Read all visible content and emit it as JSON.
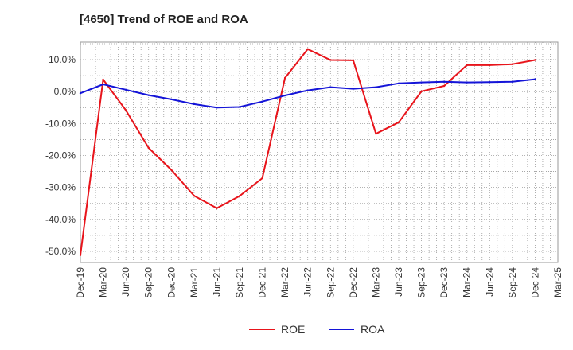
{
  "chart_data": {
    "type": "line",
    "title": "[4650]  Trend of ROE and ROA",
    "xlabel": "",
    "ylabel": "",
    "x_ticks": [
      "Dec-19",
      "Mar-20",
      "Jun-20",
      "Sep-20",
      "Dec-20",
      "Mar-21",
      "Jun-21",
      "Sep-21",
      "Dec-21",
      "Mar-22",
      "Jun-22",
      "Sep-22",
      "Dec-22",
      "Mar-23",
      "Jun-23",
      "Sep-23",
      "Dec-23",
      "Mar-24",
      "Jun-24",
      "Sep-24",
      "Dec-24",
      "Mar-25"
    ],
    "y_ticks": [
      "10.0%",
      "0.0%",
      "-10.0%",
      "-20.0%",
      "-30.0%",
      "-40.0%",
      "-50.0%"
    ],
    "y_tick_values": [
      10,
      0,
      -10,
      -20,
      -30,
      -40,
      -50
    ],
    "ylim": [
      -53.5,
      15.5
    ],
    "grid": true,
    "legend_position": "bottom-center",
    "series": [
      {
        "name": "ROE",
        "color": "#e8141b",
        "values": [
          -51.2,
          3.8,
          -5.8,
          -17.6,
          -24.5,
          -32.6,
          -36.5,
          -32.7,
          -27.1,
          4.3,
          13.3,
          9.9,
          9.8,
          -13.2,
          -9.6,
          0.1,
          1.8,
          8.3,
          8.3,
          8.6,
          9.9,
          null
        ]
      },
      {
        "name": "ROA",
        "color": "#1414d8",
        "values": [
          -0.5,
          2.3,
          0.6,
          -1.1,
          -2.4,
          -3.9,
          -5.0,
          -4.8,
          -3.1,
          -1.2,
          0.4,
          1.4,
          0.9,
          1.4,
          2.6,
          2.9,
          3.1,
          2.9,
          3.0,
          3.1,
          3.9,
          null
        ]
      }
    ]
  }
}
